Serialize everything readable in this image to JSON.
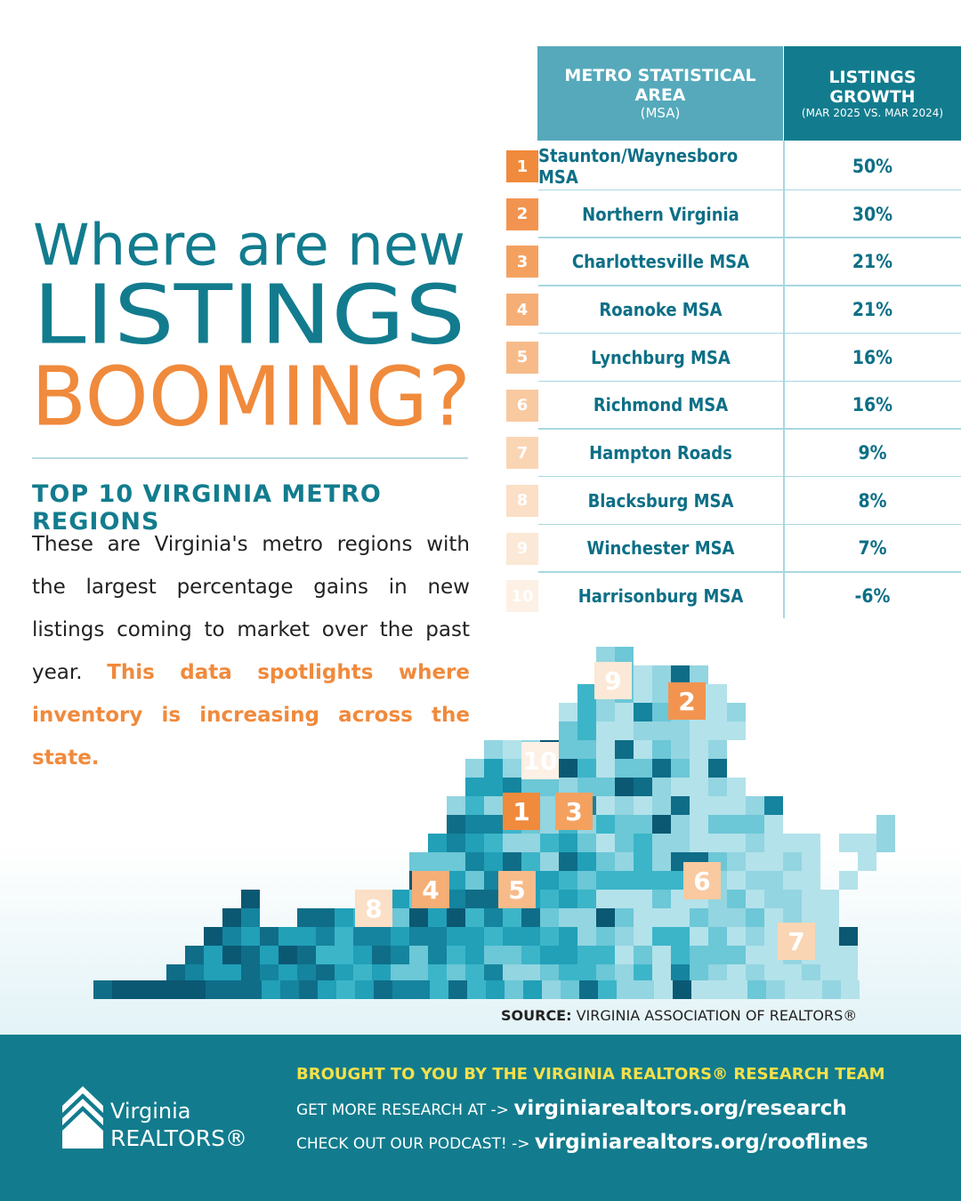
{
  "headline": {
    "line1": "Where are new",
    "line2": "LISTINGS",
    "line3": "BOOMING?"
  },
  "subtitle": "TOP 10 VIRGINIA METRO REGIONS",
  "description": {
    "text": "These are Virginia's metro regions with the largest percentage gains in new listings coming to market over the past year.",
    "highlight": "This data spotlights where inventory is increasing across the state."
  },
  "table": {
    "columns": [
      {
        "title": "METRO STATISTICAL AREA",
        "subtitle": "(MSA)"
      },
      {
        "title": "LISTINGS GROWTH",
        "subtitle": "(MAR 2025 VS. MAR 2024)"
      }
    ],
    "rows": [
      {
        "rank": "1",
        "area": "Staunton/Waynesboro MSA",
        "growth": "50%"
      },
      {
        "rank": "2",
        "area": "Northern Virginia",
        "growth": "30%"
      },
      {
        "rank": "3",
        "area": "Charlottesville MSA",
        "growth": "21%"
      },
      {
        "rank": "4",
        "area": "Roanoke MSA",
        "growth": "21%"
      },
      {
        "rank": "5",
        "area": "Lynchburg MSA",
        "growth": "16%"
      },
      {
        "rank": "6",
        "area": "Richmond MSA",
        "growth": "16%"
      },
      {
        "rank": "7",
        "area": "Hampton Roads",
        "growth": "9%"
      },
      {
        "rank": "8",
        "area": "Blacksburg MSA",
        "growth": "8%"
      },
      {
        "rank": "9",
        "area": "Winchester MSA",
        "growth": "7%"
      },
      {
        "rank": "10",
        "area": "Harrisonburg MSA",
        "growth": "-6%"
      }
    ]
  },
  "source": {
    "label": "SOURCE:",
    "text": "VIRGINIA ASSOCIATION OF REALTORS®"
  },
  "footer": {
    "credit": "BROUGHT TO YOU BY THE VIRGINIA REALTORS® RESEARCH TEAM",
    "research_label": "GET MORE RESEARCH AT ->",
    "research_link": "virginiarealtors.org/research",
    "podcast_label": "CHECK OUT OUR PODCAST! ->",
    "podcast_link": "virginiarealtors.org/rooflines"
  },
  "logo": {
    "line1": "Virginia",
    "line2": "REALTORS®"
  }
}
